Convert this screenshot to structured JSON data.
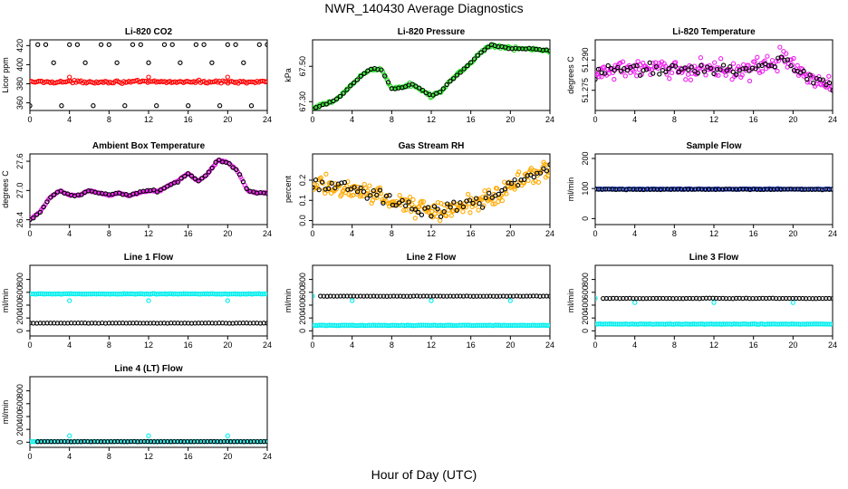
{
  "title": "NWR_140430  Average Diagnostics",
  "xlabel": "Hour of Day (UTC)",
  "colors": {
    "red": "#ff0000",
    "green": "#22dd22",
    "magenta": "#ee22ee",
    "orange": "#ffaa00",
    "blue": "#1133cc",
    "cyan": "#00eeee",
    "black": "#000000"
  },
  "chart_data": [
    {
      "type": "scatter",
      "title": "Li-820 CO2",
      "ylabel": "Licor ppm",
      "xlim": [
        0,
        24
      ],
      "x_ticks": [
        "0",
        "4",
        "8",
        "12",
        "16",
        "20",
        "24"
      ],
      "ylim": [
        352,
        426
      ],
      "y_ticks": [
        "360",
        "380",
        "400",
        "420"
      ],
      "grid": false,
      "series": [
        {
          "color": "black",
          "kind": "levels",
          "levels": [
            357,
            380,
            402,
            421
          ],
          "phase": [
            0,
            2,
            1,
            3
          ]
        },
        {
          "color": "red",
          "kind": "flat",
          "base": 382,
          "noise": 1.5,
          "n": 140
        },
        {
          "color": "red",
          "kind": "points",
          "x": [
            4,
            12,
            20
          ],
          "y": [
            387,
            387,
            387
          ]
        }
      ]
    },
    {
      "type": "scatter",
      "title": "Li-820 Pressure",
      "ylabel": "kPa",
      "xlim": [
        0,
        24
      ],
      "x_ticks": [
        "0",
        "4",
        "8",
        "12",
        "16",
        "20",
        "24"
      ],
      "ylim": [
        67.25,
        67.65
      ],
      "y_ticks": [
        "67.30",
        "67.50"
      ],
      "grid": false,
      "series": [
        {
          "color": "green",
          "kind": "curve",
          "noise": 0.01,
          "n": 160,
          "x": [
            0,
            2,
            3,
            4,
            5,
            6,
            7,
            8,
            9,
            10,
            11,
            12,
            13,
            14,
            15,
            16,
            17,
            18,
            20,
            22,
            24
          ],
          "y": [
            67.26,
            67.3,
            67.34,
            67.4,
            67.45,
            67.49,
            67.48,
            67.37,
            67.38,
            67.4,
            67.37,
            67.33,
            67.36,
            67.42,
            67.47,
            67.52,
            67.58,
            67.62,
            67.6,
            67.6,
            67.59
          ]
        },
        {
          "color": "black",
          "kind": "follow",
          "of": 0,
          "noise": 0.004,
          "n": 70
        }
      ]
    },
    {
      "type": "scatter",
      "title": "Li-820 Temperature",
      "ylabel": "degrees C",
      "xlim": [
        0,
        24
      ],
      "x_ticks": [
        "0",
        "4",
        "8",
        "12",
        "16",
        "20",
        "24"
      ],
      "ylim": [
        51.265,
        51.3
      ],
      "y_ticks": [
        "51.275",
        "51.290"
      ],
      "grid": false,
      "series": [
        {
          "color": "magenta",
          "kind": "curve",
          "noise": 0.005,
          "n": 190,
          "x": [
            0,
            2,
            4,
            6,
            8,
            10,
            12,
            14,
            16,
            18,
            19,
            20,
            22,
            24
          ],
          "y": [
            51.283,
            51.285,
            51.286,
            51.285,
            51.286,
            51.285,
            51.286,
            51.285,
            51.286,
            51.288,
            51.292,
            51.287,
            51.28,
            51.277
          ]
        },
        {
          "color": "black",
          "kind": "follow",
          "of": 0,
          "noise": 0.003,
          "n": 75
        }
      ]
    },
    {
      "type": "scatter",
      "title": "Ambient Box Temperature",
      "ylabel": "degrees C",
      "xlim": [
        0,
        24
      ],
      "x_ticks": [
        "0",
        "4",
        "8",
        "12",
        "16",
        "20",
        "24"
      ],
      "ylim": [
        26.3,
        27.75
      ],
      "y_ticks": [
        "26.4",
        "27.0",
        "27.6"
      ],
      "grid": false,
      "series": [
        {
          "color": "magenta",
          "kind": "curve",
          "noise": 0.015,
          "n": 170,
          "x": [
            0,
            1,
            2,
            3,
            4,
            5,
            6,
            7,
            8,
            9,
            10,
            11,
            12,
            13,
            14,
            15,
            16,
            17,
            18,
            19,
            20,
            21,
            22,
            23,
            24
          ],
          "y": [
            26.4,
            26.55,
            26.85,
            27.0,
            26.9,
            26.9,
            27.0,
            26.95,
            26.9,
            26.95,
            26.9,
            26.95,
            27.0,
            26.98,
            27.1,
            27.2,
            27.35,
            27.18,
            27.35,
            27.62,
            27.58,
            27.4,
            27.0,
            26.95,
            26.95
          ]
        },
        {
          "color": "black",
          "kind": "follow",
          "of": 0,
          "noise": 0.02,
          "n": 70
        }
      ]
    },
    {
      "type": "scatter",
      "title": "Gas Stream RH",
      "ylabel": "percent",
      "xlim": [
        0,
        24
      ],
      "x_ticks": [
        "0",
        "4",
        "8",
        "12",
        "16",
        "20",
        "24"
      ],
      "ylim": [
        -0.02,
        0.33
      ],
      "y_ticks": [
        "0.0",
        "0.1",
        "0.2"
      ],
      "grid": false,
      "series": [
        {
          "color": "orange",
          "kind": "curve",
          "noise": 0.05,
          "n": 230,
          "x": [
            0,
            2,
            4,
            6,
            8,
            10,
            12,
            14,
            16,
            18,
            20,
            22,
            24
          ],
          "y": [
            0.18,
            0.17,
            0.15,
            0.13,
            0.1,
            0.07,
            0.05,
            0.06,
            0.08,
            0.12,
            0.17,
            0.22,
            0.27
          ]
        },
        {
          "color": "black",
          "kind": "follow",
          "of": 0,
          "noise": 0.04,
          "n": 75
        }
      ]
    },
    {
      "type": "scatter",
      "title": "Sample Flow",
      "ylabel": "ml/min",
      "xlim": [
        0,
        24
      ],
      "x_ticks": [
        "0",
        "4",
        "8",
        "12",
        "16",
        "20",
        "24"
      ],
      "ylim": [
        -20,
        215
      ],
      "y_ticks": [
        "0",
        "100",
        "200"
      ],
      "grid": false,
      "series": [
        {
          "color": "blue",
          "kind": "flat",
          "base": 98,
          "noise": 1.5,
          "n": 140
        },
        {
          "color": "black",
          "kind": "flat",
          "base": 97,
          "noise": 1.2,
          "n": 70
        }
      ]
    },
    {
      "type": "scatter",
      "title": "Line 1 Flow",
      "ylabel": "ml/min",
      "xlim": [
        0,
        24
      ],
      "x_ticks": [
        "0",
        "4",
        "8",
        "12",
        "16",
        "20",
        "24"
      ],
      "ylim": [
        -80,
        1020
      ],
      "y_ticks": [
        "0",
        "200",
        "400",
        "600",
        "800"
      ],
      "grid": false,
      "series": [
        {
          "color": "cyan",
          "kind": "flat",
          "base": 575,
          "noise": 5,
          "n": 140
        },
        {
          "color": "cyan",
          "kind": "points",
          "x": [
            4,
            12,
            20
          ],
          "y": [
            470,
            470,
            470
          ]
        },
        {
          "color": "black",
          "kind": "flat",
          "base": 120,
          "noise": 3,
          "n": 70
        }
      ]
    },
    {
      "type": "scatter",
      "title": "Line 2 Flow",
      "ylabel": "ml/min",
      "xlim": [
        0,
        24
      ],
      "x_ticks": [
        "0",
        "4",
        "8",
        "12",
        "16",
        "20",
        "24"
      ],
      "ylim": [
        -80,
        1020
      ],
      "y_ticks": [
        "0",
        "200",
        "400",
        "600",
        "800"
      ],
      "grid": false,
      "series": [
        {
          "color": "cyan",
          "kind": "flat",
          "base": 85,
          "noise": 4,
          "n": 140
        },
        {
          "color": "cyan",
          "kind": "points",
          "x": [
            0,
            4,
            12,
            20
          ],
          "y": [
            540,
            470,
            470,
            470
          ]
        },
        {
          "color": "black",
          "kind": "flat",
          "base": 540,
          "noise": 3,
          "n": 70,
          "x_start": 0.8
        }
      ]
    },
    {
      "type": "scatter",
      "title": "Line 3 Flow",
      "ylabel": "ml/min",
      "xlim": [
        0,
        24
      ],
      "x_ticks": [
        "0",
        "4",
        "8",
        "12",
        "16",
        "20",
        "24"
      ],
      "ylim": [
        -80,
        1020
      ],
      "y_ticks": [
        "0",
        "200",
        "400",
        "600",
        "800"
      ],
      "grid": false,
      "series": [
        {
          "color": "cyan",
          "kind": "flat",
          "base": 105,
          "noise": 4,
          "n": 140
        },
        {
          "color": "cyan",
          "kind": "points",
          "x": [
            0,
            4,
            12,
            20
          ],
          "y": [
            505,
            440,
            440,
            440
          ]
        },
        {
          "color": "black",
          "kind": "flat",
          "base": 505,
          "noise": 3,
          "n": 70,
          "x_start": 0.8
        }
      ]
    },
    {
      "type": "scatter",
      "title": "Line 4 (LT) Flow",
      "ylabel": "ml/min",
      "xlim": [
        0,
        24
      ],
      "x_ticks": [
        "0",
        "4",
        "8",
        "12",
        "16",
        "20",
        "24"
      ],
      "ylim": [
        -80,
        1020
      ],
      "y_ticks": [
        "0",
        "200",
        "400",
        "600",
        "800"
      ],
      "grid": false,
      "series": [
        {
          "color": "cyan",
          "kind": "flat",
          "base": 10,
          "noise": 3,
          "n": 140
        },
        {
          "color": "cyan",
          "kind": "points",
          "x": [
            4,
            12,
            20
          ],
          "y": [
            100,
            100,
            100
          ]
        },
        {
          "color": "black",
          "kind": "flat",
          "base": 10,
          "noise": 2,
          "n": 70,
          "x_start": 0.8
        }
      ]
    }
  ]
}
